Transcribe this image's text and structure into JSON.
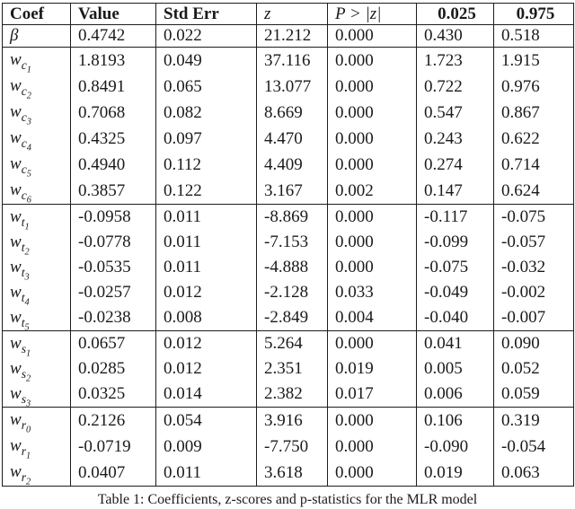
{
  "table": {
    "headers": [
      {
        "key": "coef",
        "text": "Coef",
        "emph": "bold",
        "align": "left"
      },
      {
        "key": "value",
        "text": "Value",
        "emph": "bold",
        "align": "left"
      },
      {
        "key": "std-err",
        "text": "Std Err",
        "emph": "bold",
        "align": "left"
      },
      {
        "key": "z",
        "text": "z",
        "emph": "italic",
        "align": "left"
      },
      {
        "key": "p-value",
        "text": "P > |z|",
        "emph": "italic",
        "align": "left"
      },
      {
        "key": "ci-lower",
        "text": "0.025",
        "emph": "bold",
        "align": "center"
      },
      {
        "key": "ci-upper",
        "text": "0.975",
        "emph": "bold",
        "align": "center"
      }
    ],
    "groups": [
      {
        "name": "beta",
        "rows": [
          {
            "coef": [
              "β"
            ],
            "values": [
              "0.4742",
              "0.022",
              "21.212",
              "0.000",
              "0.430",
              "0.518"
            ]
          }
        ]
      },
      {
        "name": "wc",
        "rows": [
          {
            "coef": [
              "w",
              "c",
              "1"
            ],
            "values": [
              "1.8193",
              "0.049",
              "37.116",
              "0.000",
              "1.723",
              "1.915"
            ]
          },
          {
            "coef": [
              "w",
              "c",
              "2"
            ],
            "values": [
              "0.8491",
              "0.065",
              "13.077",
              "0.000",
              "0.722",
              "0.976"
            ]
          },
          {
            "coef": [
              "w",
              "c",
              "3"
            ],
            "values": [
              "0.7068",
              "0.082",
              "8.669",
              "0.000",
              "0.547",
              "0.867"
            ]
          },
          {
            "coef": [
              "w",
              "c",
              "4"
            ],
            "values": [
              "0.4325",
              "0.097",
              "4.470",
              "0.000",
              "0.243",
              "0.622"
            ]
          },
          {
            "coef": [
              "w",
              "c",
              "5"
            ],
            "values": [
              "0.4940",
              "0.112",
              "4.409",
              "0.000",
              "0.274",
              "0.714"
            ]
          },
          {
            "coef": [
              "w",
              "c",
              "6"
            ],
            "values": [
              "0.3857",
              "0.122",
              "3.167",
              "0.002",
              "0.147",
              "0.624"
            ]
          }
        ]
      },
      {
        "name": "wt",
        "rows": [
          {
            "coef": [
              "w",
              "t",
              "1"
            ],
            "values": [
              "-0.0958",
              "0.011",
              "-8.869",
              "0.000",
              "-0.117",
              "-0.075"
            ]
          },
          {
            "coef": [
              "w",
              "t",
              "2"
            ],
            "values": [
              "-0.0778",
              "0.011",
              "-7.153",
              "0.000",
              "-0.099",
              "-0.057"
            ]
          },
          {
            "coef": [
              "w",
              "t",
              "3"
            ],
            "values": [
              "-0.0535",
              "0.011",
              "-4.888",
              "0.000",
              "-0.075",
              "-0.032"
            ]
          },
          {
            "coef": [
              "w",
              "t",
              "4"
            ],
            "values": [
              "-0.0257",
              "0.012",
              "-2.128",
              "0.033",
              "-0.049",
              "-0.002"
            ]
          },
          {
            "coef": [
              "w",
              "t",
              "5"
            ],
            "values": [
              "-0.0238",
              "0.008",
              "-2.849",
              "0.004",
              "-0.040",
              "-0.007"
            ]
          }
        ]
      },
      {
        "name": "ws",
        "rows": [
          {
            "coef": [
              "w",
              "s",
              "1"
            ],
            "values": [
              "0.0657",
              "0.012",
              "5.264",
              "0.000",
              "0.041",
              "0.090"
            ]
          },
          {
            "coef": [
              "w",
              "s",
              "2"
            ],
            "values": [
              "0.0285",
              "0.012",
              "2.351",
              "0.019",
              "0.005",
              "0.052"
            ]
          },
          {
            "coef": [
              "w",
              "s",
              "3"
            ],
            "values": [
              "0.0325",
              "0.014",
              "2.382",
              "0.017",
              "0.006",
              "0.059"
            ]
          }
        ]
      },
      {
        "name": "wr",
        "rows": [
          {
            "coef": [
              "w",
              "r",
              "0"
            ],
            "values": [
              "0.2126",
              "0.054",
              "3.916",
              "0.000",
              "0.106",
              "0.319"
            ]
          },
          {
            "coef": [
              "w",
              "r",
              "1"
            ],
            "values": [
              "-0.0719",
              "0.009",
              "-7.750",
              "0.000",
              "-0.090",
              "-0.054"
            ]
          },
          {
            "coef": [
              "w",
              "r",
              "2"
            ],
            "values": [
              "0.0407",
              "0.011",
              "3.618",
              "0.000",
              "0.019",
              "0.063"
            ]
          }
        ]
      }
    ]
  },
  "caption": {
    "text": "Table 1: Coefficients, z-scores and p-statistics for the MLR model"
  }
}
